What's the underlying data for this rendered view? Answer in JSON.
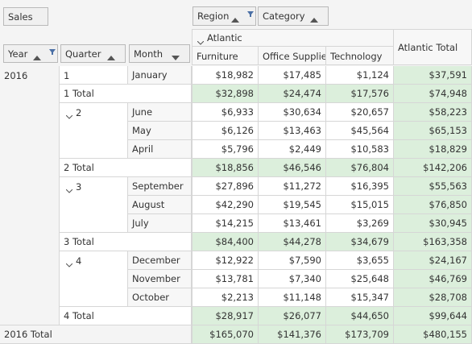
{
  "fields": {
    "data_area": {
      "label": "Sales"
    },
    "column_area": [
      {
        "label": "Region",
        "sort": "asc",
        "filter": true
      },
      {
        "label": "Category",
        "sort": "asc",
        "filter": false
      }
    ],
    "row_area": [
      {
        "label": "Year",
        "sort": "asc",
        "filter": true
      },
      {
        "label": "Quarter",
        "sort": "asc",
        "filter": false
      },
      {
        "label": "Month",
        "sort": "desc",
        "filter": false
      }
    ]
  },
  "column_header": {
    "region": "Atlantic",
    "categories": [
      "Furniture",
      "Office Supplies",
      "Technology"
    ],
    "total": "Atlantic Total"
  },
  "years": [
    {
      "label": "2016",
      "quarters": [
        {
          "label": "1",
          "months": [
            {
              "label": "January",
              "values": [
                "$18,982",
                "$17,485",
                "$1,124",
                "$37,591"
              ]
            }
          ],
          "total": {
            "label": "1 Total",
            "values": [
              "$32,898",
              "$24,474",
              "$17,576",
              "$74,948"
            ]
          }
        },
        {
          "label": "2",
          "months": [
            {
              "label": "June",
              "values": [
                "$6,933",
                "$30,634",
                "$20,657",
                "$58,223"
              ]
            },
            {
              "label": "May",
              "values": [
                "$6,126",
                "$13,463",
                "$45,564",
                "$65,153"
              ]
            },
            {
              "label": "April",
              "values": [
                "$5,796",
                "$2,449",
                "$10,583",
                "$18,829"
              ]
            }
          ],
          "total": {
            "label": "2 Total",
            "values": [
              "$18,856",
              "$46,546",
              "$76,804",
              "$142,206"
            ]
          }
        },
        {
          "label": "3",
          "months": [
            {
              "label": "September",
              "values": [
                "$27,896",
                "$11,272",
                "$16,395",
                "$55,563"
              ]
            },
            {
              "label": "August",
              "values": [
                "$42,290",
                "$19,545",
                "$15,015",
                "$76,850"
              ]
            },
            {
              "label": "July",
              "values": [
                "$14,215",
                "$13,461",
                "$3,269",
                "$30,945"
              ]
            }
          ],
          "total": {
            "label": "3 Total",
            "values": [
              "$84,400",
              "$44,278",
              "$34,679",
              "$163,358"
            ]
          }
        },
        {
          "label": "4",
          "months": [
            {
              "label": "December",
              "values": [
                "$12,922",
                "$7,590",
                "$3,655",
                "$24,167"
              ]
            },
            {
              "label": "November",
              "values": [
                "$13,781",
                "$7,340",
                "$25,648",
                "$46,769"
              ]
            },
            {
              "label": "October",
              "values": [
                "$2,213",
                "$11,148",
                "$15,347",
                "$28,708"
              ]
            }
          ],
          "total": {
            "label": "4 Total",
            "values": [
              "$28,917",
              "$26,077",
              "$44,650",
              "$99,644"
            ]
          }
        }
      ],
      "total": {
        "label": "2016 Total",
        "values": [
          "$165,070",
          "$141,376",
          "$173,709",
          "$480,155"
        ]
      }
    }
  ]
}
